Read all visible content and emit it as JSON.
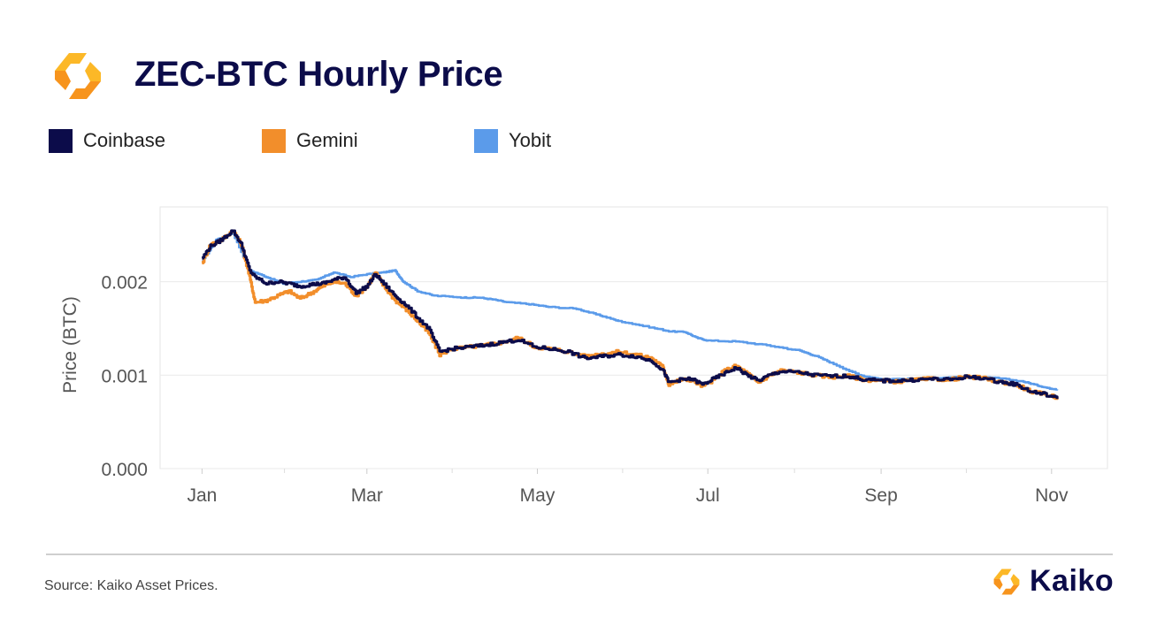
{
  "header": {
    "title": "ZEC-BTC Hourly Price",
    "logo_icon": "kaiko-logo-icon"
  },
  "footer": {
    "source": "Source: Kaiko Asset Prices.",
    "brand_name": "Kaiko",
    "brand_icon": "kaiko-logo-icon"
  },
  "colors": {
    "coinbase": "#0c0c4a",
    "gemini": "#f28e2b",
    "yobit": "#5b9bea",
    "logo_orange": "#f7941d",
    "logo_yellow": "#fcb827"
  },
  "chart_data": {
    "type": "line",
    "title": "ZEC-BTC Hourly Price",
    "xlabel": "",
    "ylabel": "Price (BTC)",
    "x_ticks": [
      "Jan",
      "Mar",
      "May",
      "Jul",
      "Sep",
      "Nov"
    ],
    "x_tick_days": [
      1,
      60,
      121,
      182,
      244,
      305
    ],
    "y_ticks": [
      "0.000",
      "0.001",
      "0.002"
    ],
    "y_tick_values": [
      0.0,
      0.001,
      0.002
    ],
    "ylim": [
      0,
      0.0028
    ],
    "xlim_days": [
      -14,
      325
    ],
    "grid": true,
    "legend": "top-left",
    "series": [
      {
        "name": "Yobit",
        "color": "#5b9bea",
        "points": [
          [
            1,
            0.00222
          ],
          [
            6,
            0.00245
          ],
          [
            12,
            0.00252
          ],
          [
            18,
            0.00212
          ],
          [
            24,
            0.00205
          ],
          [
            30,
            0.00198
          ],
          [
            36,
            0.002
          ],
          [
            42,
            0.00202
          ],
          [
            48,
            0.0021
          ],
          [
            54,
            0.00205
          ],
          [
            60,
            0.00208
          ],
          [
            66,
            0.0021
          ],
          [
            70,
            0.00212
          ],
          [
            73,
            0.002
          ],
          [
            78,
            0.0019
          ],
          [
            84,
            0.00185
          ],
          [
            95,
            0.00183
          ],
          [
            100,
            0.00183
          ],
          [
            105,
            0.00181
          ],
          [
            110,
            0.00178
          ],
          [
            118,
            0.00176
          ],
          [
            125,
            0.00173
          ],
          [
            135,
            0.00171
          ],
          [
            142,
            0.00165
          ],
          [
            148,
            0.0016
          ],
          [
            150,
            0.00158
          ],
          [
            160,
            0.00152
          ],
          [
            168,
            0.00147
          ],
          [
            174,
            0.00146
          ],
          [
            178,
            0.0014
          ],
          [
            182,
            0.00137
          ],
          [
            192,
            0.00136
          ],
          [
            203,
            0.00132
          ],
          [
            215,
            0.00126
          ],
          [
            221,
            0.0012
          ],
          [
            227,
            0.00112
          ],
          [
            236,
            0.001
          ],
          [
            244,
            0.00096
          ],
          [
            255,
            0.00096
          ],
          [
            270,
            0.00098
          ],
          [
            285,
            0.00097
          ],
          [
            295,
            0.00093
          ],
          [
            300,
            0.00089
          ],
          [
            304,
            0.00086
          ],
          [
            307,
            0.00085
          ]
        ]
      },
      {
        "name": "Gemini",
        "color": "#f28e2b",
        "points": [
          [
            1,
            0.0022
          ],
          [
            4,
            0.0024
          ],
          [
            8,
            0.00245
          ],
          [
            12,
            0.00255
          ],
          [
            15,
            0.0024
          ],
          [
            18,
            0.00205
          ],
          [
            20,
            0.00178
          ],
          [
            24,
            0.0018
          ],
          [
            28,
            0.00185
          ],
          [
            32,
            0.0019
          ],
          [
            36,
            0.00182
          ],
          [
            40,
            0.00188
          ],
          [
            44,
            0.00195
          ],
          [
            48,
            0.002
          ],
          [
            52,
            0.00198
          ],
          [
            56,
            0.00185
          ],
          [
            60,
            0.00195
          ],
          [
            63,
            0.0021
          ],
          [
            66,
            0.00195
          ],
          [
            70,
            0.0018
          ],
          [
            74,
            0.0017
          ],
          [
            78,
            0.00158
          ],
          [
            82,
            0.00145
          ],
          [
            86,
            0.00122
          ],
          [
            90,
            0.00128
          ],
          [
            96,
            0.0013
          ],
          [
            102,
            0.00132
          ],
          [
            108,
            0.00135
          ],
          [
            114,
            0.0014
          ],
          [
            120,
            0.0013
          ],
          [
            126,
            0.00128
          ],
          [
            132,
            0.00125
          ],
          [
            138,
            0.0012
          ],
          [
            144,
            0.00123
          ],
          [
            150,
            0.00125
          ],
          [
            156,
            0.00122
          ],
          [
            162,
            0.00118
          ],
          [
            166,
            0.00108
          ],
          [
            168,
            0.0009
          ],
          [
            172,
            0.00095
          ],
          [
            176,
            0.00095
          ],
          [
            180,
            0.00088
          ],
          [
            184,
            0.00095
          ],
          [
            188,
            0.00105
          ],
          [
            192,
            0.0011
          ],
          [
            196,
            0.00102
          ],
          [
            200,
            0.00092
          ],
          [
            204,
            0.001
          ],
          [
            208,
            0.00105
          ],
          [
            214,
            0.00103
          ],
          [
            220,
            0.001
          ],
          [
            226,
            0.00098
          ],
          [
            232,
            0.00099
          ],
          [
            238,
            0.00095
          ],
          [
            244,
            0.00094
          ],
          [
            250,
            0.00093
          ],
          [
            256,
            0.00095
          ],
          [
            262,
            0.00096
          ],
          [
            268,
            0.00095
          ],
          [
            274,
            0.00098
          ],
          [
            280,
            0.00097
          ],
          [
            286,
            0.00093
          ],
          [
            292,
            0.0009
          ],
          [
            298,
            0.00082
          ],
          [
            302,
            0.0008
          ],
          [
            307,
            0.00076
          ]
        ]
      },
      {
        "name": "Coinbase",
        "color": "#0c0c4a",
        "points": [
          [
            1,
            0.00225
          ],
          [
            4,
            0.00238
          ],
          [
            8,
            0.00245
          ],
          [
            12,
            0.00255
          ],
          [
            15,
            0.0024
          ],
          [
            18,
            0.00212
          ],
          [
            20,
            0.00205
          ],
          [
            24,
            0.00198
          ],
          [
            28,
            0.002
          ],
          [
            32,
            0.00198
          ],
          [
            36,
            0.00195
          ],
          [
            40,
            0.00197
          ],
          [
            44,
            0.00198
          ],
          [
            48,
            0.00202
          ],
          [
            52,
            0.00205
          ],
          [
            56,
            0.00188
          ],
          [
            60,
            0.00195
          ],
          [
            63,
            0.00208
          ],
          [
            66,
            0.00198
          ],
          [
            70,
            0.00185
          ],
          [
            74,
            0.00175
          ],
          [
            78,
            0.00162
          ],
          [
            82,
            0.0015
          ],
          [
            86,
            0.00125
          ],
          [
            90,
            0.00128
          ],
          [
            96,
            0.0013
          ],
          [
            102,
            0.00132
          ],
          [
            108,
            0.00135
          ],
          [
            114,
            0.00138
          ],
          [
            120,
            0.0013
          ],
          [
            126,
            0.00128
          ],
          [
            132,
            0.00125
          ],
          [
            138,
            0.00118
          ],
          [
            144,
            0.0012
          ],
          [
            150,
            0.00122
          ],
          [
            156,
            0.0012
          ],
          [
            162,
            0.00115
          ],
          [
            166,
            0.00105
          ],
          [
            168,
            0.00092
          ],
          [
            172,
            0.00095
          ],
          [
            176,
            0.00096
          ],
          [
            180,
            0.0009
          ],
          [
            184,
            0.00096
          ],
          [
            188,
            0.00102
          ],
          [
            192,
            0.00108
          ],
          [
            196,
            0.001
          ],
          [
            200,
            0.00094
          ],
          [
            204,
            0.001
          ],
          [
            208,
            0.00104
          ],
          [
            214,
            0.00103
          ],
          [
            220,
            0.001
          ],
          [
            226,
            0.00099
          ],
          [
            232,
            0.00099
          ],
          [
            238,
            0.00095
          ],
          [
            244,
            0.00094
          ],
          [
            250,
            0.00094
          ],
          [
            256,
            0.00095
          ],
          [
            262,
            0.00096
          ],
          [
            268,
            0.00095
          ],
          [
            274,
            0.00098
          ],
          [
            280,
            0.00097
          ],
          [
            286,
            0.00093
          ],
          [
            292,
            0.0009
          ],
          [
            298,
            0.00082
          ],
          [
            302,
            0.0008
          ],
          [
            307,
            0.00075
          ]
        ]
      }
    ]
  }
}
